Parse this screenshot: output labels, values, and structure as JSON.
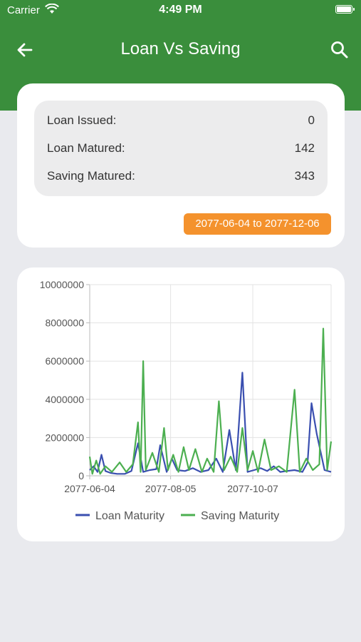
{
  "status_bar": {
    "carrier": "Carrier",
    "time": "4:49 PM"
  },
  "appbar": {
    "title": "Loan Vs Saving",
    "back_icon": "arrow-left-icon",
    "search_icon": "search-icon"
  },
  "summary": {
    "rows": [
      {
        "label": "Loan Issued:",
        "value": "0"
      },
      {
        "label": "Loan Matured:",
        "value": "142"
      },
      {
        "label": "Saving Matured:",
        "value": "343"
      }
    ],
    "date_range": "2077-06-04 to 2077-12-06"
  },
  "colors": {
    "header": "#3a8e3c",
    "badge": "#f4922d",
    "loan": "#3a4fb0",
    "saving": "#4caf50"
  },
  "chart_data": {
    "type": "line",
    "ylim": [
      0,
      10000000
    ],
    "yticks": [
      0,
      2000000,
      4000000,
      6000000,
      8000000,
      10000000
    ],
    "ytick_labels": [
      "0",
      "2000000",
      "4000000",
      "6000000",
      "8000000",
      "10000000"
    ],
    "x_range": [
      "2077-06-04",
      "2077-12-06"
    ],
    "xtick_labels": [
      "2077-06-04",
      "2077-08-05",
      "2077-10-07"
    ],
    "grid": true,
    "legend_position": "bottom",
    "series": [
      {
        "name": "Loan Maturity",
        "color": "#3a4fb0",
        "points": [
          [
            "2077-06-04",
            300000
          ],
          [
            "2077-06-07",
            500000
          ],
          [
            "2077-06-10",
            200000
          ],
          [
            "2077-06-13",
            1100000
          ],
          [
            "2077-06-16",
            250000
          ],
          [
            "2077-06-20",
            150000
          ],
          [
            "2077-06-25",
            100000
          ],
          [
            "2077-07-01",
            100000
          ],
          [
            "2077-07-06",
            250000
          ],
          [
            "2077-07-11",
            1700000
          ],
          [
            "2077-07-15",
            200000
          ],
          [
            "2077-07-20",
            300000
          ],
          [
            "2077-07-25",
            350000
          ],
          [
            "2077-07-28",
            1600000
          ],
          [
            "2077-08-02",
            200000
          ],
          [
            "2077-08-06",
            900000
          ],
          [
            "2077-08-10",
            300000
          ],
          [
            "2077-08-16",
            250000
          ],
          [
            "2077-08-22",
            400000
          ],
          [
            "2077-08-28",
            200000
          ],
          [
            "2077-09-03",
            300000
          ],
          [
            "2077-09-09",
            900000
          ],
          [
            "2077-09-14",
            200000
          ],
          [
            "2077-09-19",
            2400000
          ],
          [
            "2077-09-24",
            300000
          ],
          [
            "2077-09-29",
            5400000
          ],
          [
            "2077-10-03",
            200000
          ],
          [
            "2077-10-08",
            300000
          ],
          [
            "2077-10-13",
            400000
          ],
          [
            "2077-10-18",
            250000
          ],
          [
            "2077-10-23",
            500000
          ],
          [
            "2077-10-28",
            200000
          ],
          [
            "2077-11-02",
            250000
          ],
          [
            "2077-11-08",
            300000
          ],
          [
            "2077-11-14",
            200000
          ],
          [
            "2077-11-18",
            700000
          ],
          [
            "2077-11-21",
            3800000
          ],
          [
            "2077-11-25",
            2200000
          ],
          [
            "2077-12-01",
            300000
          ],
          [
            "2077-12-06",
            200000
          ]
        ]
      },
      {
        "name": "Saving Maturity",
        "color": "#4caf50",
        "points": [
          [
            "2077-06-04",
            1000000
          ],
          [
            "2077-06-06",
            100000
          ],
          [
            "2077-06-09",
            800000
          ],
          [
            "2077-06-12",
            100000
          ],
          [
            "2077-06-16",
            500000
          ],
          [
            "2077-06-21",
            200000
          ],
          [
            "2077-06-27",
            700000
          ],
          [
            "2077-07-02",
            200000
          ],
          [
            "2077-07-07",
            600000
          ],
          [
            "2077-07-11",
            2800000
          ],
          [
            "2077-07-13",
            200000
          ],
          [
            "2077-07-15",
            6000000
          ],
          [
            "2077-07-17",
            300000
          ],
          [
            "2077-07-22",
            1200000
          ],
          [
            "2077-07-27",
            200000
          ],
          [
            "2077-07-31",
            2500000
          ],
          [
            "2077-08-03",
            300000
          ],
          [
            "2077-08-07",
            1100000
          ],
          [
            "2077-08-11",
            200000
          ],
          [
            "2077-08-15",
            1500000
          ],
          [
            "2077-08-19",
            300000
          ],
          [
            "2077-08-24",
            1400000
          ],
          [
            "2077-08-29",
            200000
          ],
          [
            "2077-09-02",
            900000
          ],
          [
            "2077-09-07",
            200000
          ],
          [
            "2077-09-11",
            3900000
          ],
          [
            "2077-09-15",
            300000
          ],
          [
            "2077-09-20",
            1000000
          ],
          [
            "2077-09-25",
            200000
          ],
          [
            "2077-09-29",
            2500000
          ],
          [
            "2077-10-03",
            300000
          ],
          [
            "2077-10-07",
            1300000
          ],
          [
            "2077-10-11",
            200000
          ],
          [
            "2077-10-16",
            1900000
          ],
          [
            "2077-10-21",
            300000
          ],
          [
            "2077-10-27",
            500000
          ],
          [
            "2077-11-02",
            200000
          ],
          [
            "2077-11-08",
            4500000
          ],
          [
            "2077-11-12",
            200000
          ],
          [
            "2077-11-17",
            900000
          ],
          [
            "2077-11-22",
            300000
          ],
          [
            "2077-11-27",
            600000
          ],
          [
            "2077-11-30",
            7700000
          ],
          [
            "2077-12-03",
            300000
          ],
          [
            "2077-12-06",
            1800000
          ]
        ]
      }
    ]
  }
}
